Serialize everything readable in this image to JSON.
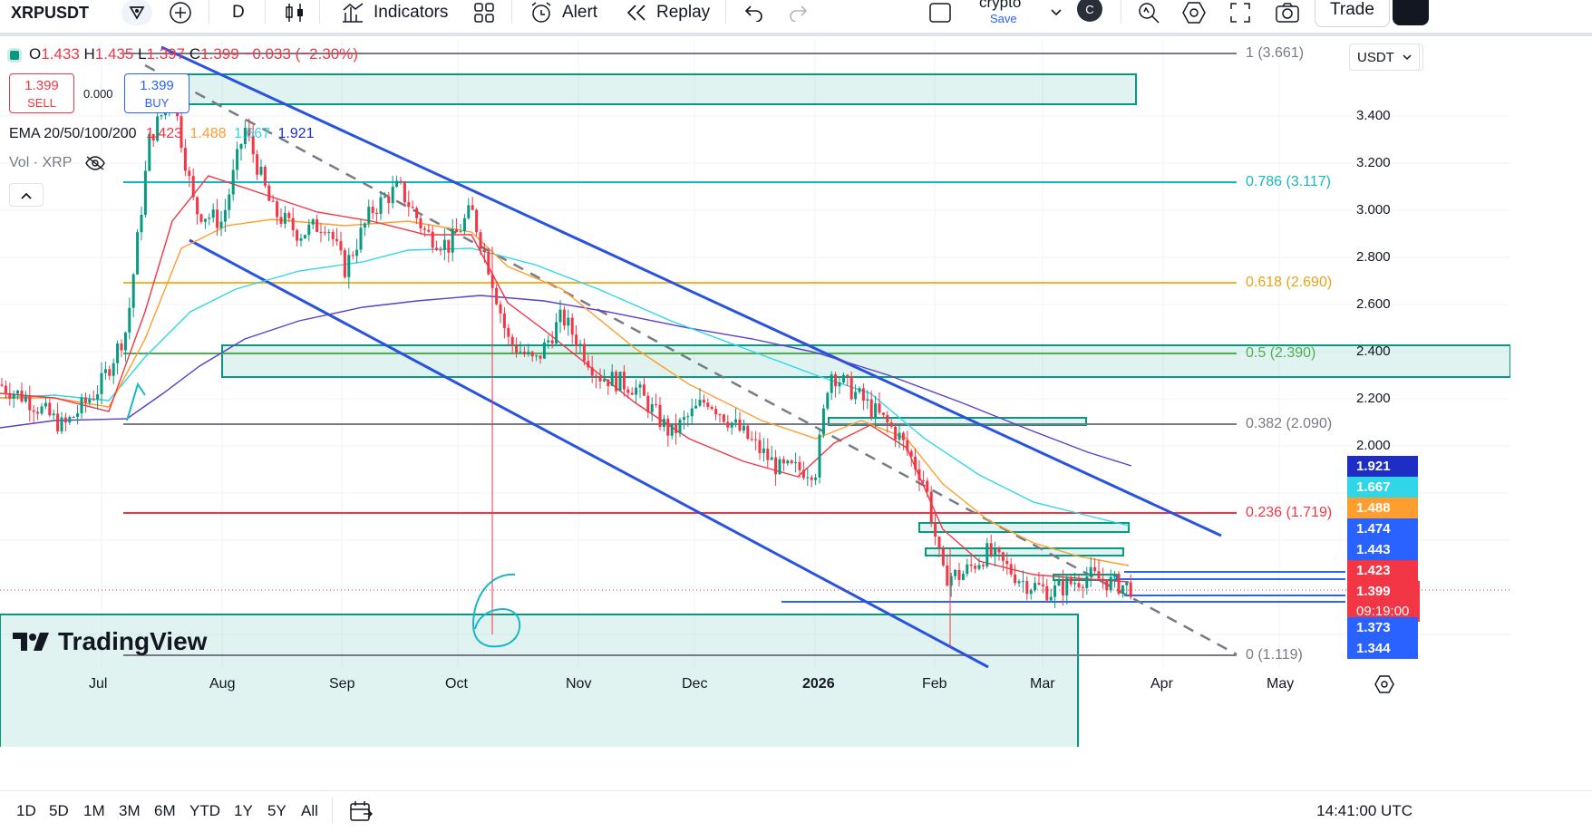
{
  "toolbar": {
    "symbol": "XRPUSDT",
    "interval": "D",
    "indicators": "Indicators",
    "alert": "Alert",
    "replay": "Replay",
    "layout_name": "crypto",
    "save": "Save",
    "avatar_letter": "C",
    "trade": "Trade"
  },
  "legend": {
    "open_label": "O",
    "open": "1.433",
    "high_label": "H",
    "high": "1.435",
    "low_label": "L",
    "low": "1.397",
    "close_label": "C",
    "close": "1.399",
    "change": "−0.033 (−2.30%)",
    "sell_price": "1.399",
    "sell_label": "SELL",
    "spread": "0.000",
    "buy_price": "1.399",
    "buy_label": "BUY",
    "ema_label": "EMA 20/50/100/200",
    "ema20": "1.423",
    "ema50": "1.488",
    "ema100": "1.667",
    "ema200": "1.921",
    "vol_label": "Vol · XRP"
  },
  "price_scale": {
    "currency": "USDT",
    "ticks": [
      "3.400",
      "3.200",
      "3.000",
      "2.800",
      "2.600",
      "2.400",
      "2.200",
      "2.000"
    ],
    "tags": [
      {
        "value": "1.921",
        "color": "#1e2ec4"
      },
      {
        "value": "1.667",
        "color": "#30d6e8"
      },
      {
        "value": "1.488",
        "color": "#ff9d2e"
      },
      {
        "value": "1.474",
        "color": "#2962ff"
      },
      {
        "value": "1.443",
        "color": "#2962ff"
      },
      {
        "value": "1.423",
        "color": "#f23645"
      },
      {
        "value": "1.399",
        "color": "#f23645"
      },
      {
        "value": "09:19:00",
        "color": "#f23645"
      },
      {
        "value": "1.373",
        "color": "#2962ff"
      },
      {
        "value": "1.344",
        "color": "#2962ff"
      }
    ]
  },
  "fib_levels": [
    {
      "label": "1 (3.661)",
      "color": "#787b86"
    },
    {
      "label": "0.786 (3.117)",
      "color": "#14b8c4"
    },
    {
      "label": "0.618 (2.690)",
      "color": "#e8a317"
    },
    {
      "label": "0.5 (2.390)",
      "color": "#4caf50"
    },
    {
      "label": "0.382 (2.090)",
      "color": "#787b86"
    },
    {
      "label": "0.236 (1.719)",
      "color": "#f23645"
    },
    {
      "label": "0 (1.119)",
      "color": "#787b86"
    }
  ],
  "time_axis": [
    "Jul",
    "Aug",
    "Sep",
    "Oct",
    "Nov",
    "Dec",
    "2026",
    "Feb",
    "Mar",
    "Apr",
    "May"
  ],
  "ranges": [
    "1D",
    "5D",
    "1M",
    "3M",
    "6M",
    "YTD",
    "1Y",
    "5Y",
    "All"
  ],
  "clock": "14:41:00 UTC",
  "watermark": "TradingView",
  "annotation_text": "6",
  "chart_data": {
    "type": "candlestick",
    "symbol": "XRPUSDT",
    "interval": "1D",
    "last": {
      "open": 1.433,
      "high": 1.435,
      "low": 1.397,
      "close": 1.399
    },
    "ema": {
      "20": 1.423,
      "50": 1.488,
      "100": 1.667,
      "200": 1.921
    },
    "fibonacci": [
      {
        "level": 1,
        "price": 3.661
      },
      {
        "level": 0.786,
        "price": 3.117
      },
      {
        "level": 0.618,
        "price": 2.69
      },
      {
        "level": 0.5,
        "price": 2.39
      },
      {
        "level": 0.382,
        "price": 2.09
      },
      {
        "level": 0.236,
        "price": 1.719
      },
      {
        "level": 0,
        "price": 1.119
      }
    ],
    "approx_closes": [
      {
        "x": "Jul",
        "y": 2.26
      },
      {
        "x": "mid Jul",
        "y": 3.5
      },
      {
        "x": "Aug",
        "y": 3.0
      },
      {
        "x": "Sep",
        "y": 2.85
      },
      {
        "x": "mid Sep",
        "y": 3.05
      },
      {
        "x": "Oct",
        "y": 2.9
      },
      {
        "x": "mid Oct",
        "y": 2.4
      },
      {
        "x": "Nov",
        "y": 2.5
      },
      {
        "x": "Dec",
        "y": 2.05
      },
      {
        "x": "2026",
        "y": 1.95
      },
      {
        "x": "early Jan",
        "y": 2.3
      },
      {
        "x": "Feb",
        "y": 1.6
      },
      {
        "x": "Mar",
        "y": 1.38
      },
      {
        "x": "late Mar",
        "y": 1.399
      }
    ]
  }
}
